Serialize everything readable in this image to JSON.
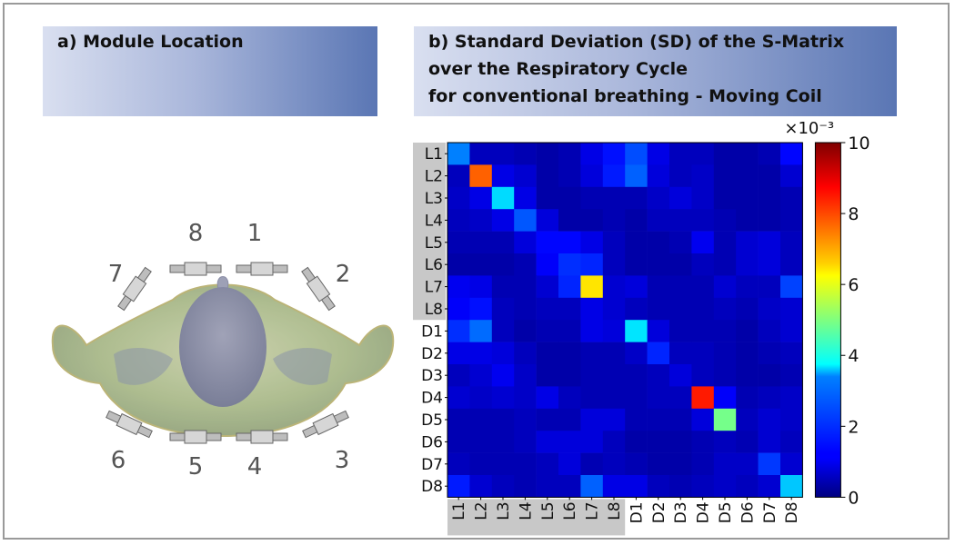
{
  "panel_a": {
    "title": "a) Module Location",
    "module_labels": [
      "1",
      "2",
      "3",
      "4",
      "5",
      "6",
      "7",
      "8"
    ]
  },
  "panel_b": {
    "title_lines": [
      "b) Standard Deviation (SD) of the S-Matrix",
      "over the Respiratory Cycle",
      "for conventional breathing - Moving Coil"
    ]
  },
  "colors": {
    "header_gradient": [
      "#d9dff0",
      "#5a76b4"
    ],
    "label_highlight": "#c8c8c8",
    "colormap": "jet"
  },
  "chart_data": {
    "type": "heatmap",
    "colormap": "jet",
    "rows": [
      "L1",
      "L2",
      "L3",
      "L4",
      "L5",
      "L6",
      "L7",
      "L8",
      "D1",
      "D2",
      "D3",
      "D4",
      "D5",
      "D6",
      "D7",
      "D8"
    ],
    "columns": [
      "L1",
      "L2",
      "L3",
      "L4",
      "L5",
      "L6",
      "L7",
      "L8",
      "D1",
      "D2",
      "D3",
      "D4",
      "D5",
      "D6",
      "D7",
      "D8"
    ],
    "highlighted_labels": [
      "L1",
      "L2",
      "L3",
      "L4",
      "L5",
      "L6",
      "L7",
      "L8"
    ],
    "scale_label": "×10⁻³",
    "colorbar": {
      "range": [
        0,
        10
      ],
      "ticks": [
        0,
        2,
        4,
        6,
        8,
        10
      ]
    },
    "values": [
      [
        2.5,
        0.6,
        0.6,
        0.5,
        0.4,
        0.5,
        1.0,
        1.4,
        2.0,
        1.0,
        0.6,
        0.6,
        0.4,
        0.4,
        0.5,
        1.3
      ],
      [
        0.6,
        7.8,
        1.0,
        0.8,
        0.4,
        0.5,
        0.9,
        1.5,
        2.2,
        0.9,
        0.6,
        0.7,
        0.4,
        0.4,
        0.4,
        0.8
      ],
      [
        0.7,
        1.0,
        3.4,
        1.0,
        0.4,
        0.4,
        0.5,
        0.5,
        0.5,
        0.7,
        0.9,
        0.7,
        0.4,
        0.4,
        0.4,
        0.5
      ],
      [
        0.6,
        0.7,
        1.0,
        2.1,
        0.9,
        0.4,
        0.4,
        0.5,
        0.4,
        0.6,
        0.6,
        0.6,
        0.5,
        0.4,
        0.4,
        0.5
      ],
      [
        0.5,
        0.5,
        0.5,
        0.9,
        1.3,
        1.3,
        1.0,
        0.6,
        0.4,
        0.4,
        0.5,
        1.1,
        0.5,
        0.8,
        0.9,
        0.6
      ],
      [
        0.4,
        0.4,
        0.4,
        0.5,
        1.2,
        1.7,
        1.6,
        0.6,
        0.4,
        0.4,
        0.4,
        0.6,
        0.5,
        0.8,
        0.9,
        0.6
      ],
      [
        1.1,
        1.0,
        0.5,
        0.5,
        0.8,
        1.6,
        6.5,
        0.8,
        0.9,
        0.5,
        0.5,
        0.5,
        0.8,
        0.6,
        0.6,
        1.9
      ],
      [
        1.2,
        1.4,
        0.6,
        0.5,
        0.6,
        0.6,
        1.0,
        0.8,
        0.6,
        0.5,
        0.5,
        0.5,
        0.6,
        0.5,
        0.7,
        0.8
      ],
      [
        1.7,
        2.3,
        0.6,
        0.4,
        0.5,
        0.5,
        1.0,
        0.9,
        3.5,
        0.9,
        0.5,
        0.5,
        0.5,
        0.4,
        0.6,
        0.8
      ],
      [
        1.0,
        1.0,
        0.9,
        0.6,
        0.4,
        0.4,
        0.5,
        0.5,
        0.7,
        1.6,
        0.6,
        0.6,
        0.5,
        0.4,
        0.5,
        0.6
      ],
      [
        0.6,
        0.8,
        1.1,
        0.7,
        0.4,
        0.4,
        0.5,
        0.5,
        0.5,
        0.6,
        0.9,
        0.6,
        0.5,
        0.4,
        0.4,
        0.5
      ],
      [
        0.8,
        0.7,
        0.8,
        0.7,
        1.0,
        0.6,
        0.5,
        0.5,
        0.5,
        0.6,
        0.6,
        8.5,
        1.2,
        0.5,
        0.6,
        0.7
      ],
      [
        0.5,
        0.5,
        0.5,
        0.6,
        0.5,
        0.5,
        0.9,
        0.9,
        0.5,
        0.5,
        0.5,
        0.9,
        4.9,
        0.6,
        0.8,
        0.7
      ],
      [
        0.5,
        0.5,
        0.5,
        0.6,
        0.9,
        0.9,
        0.9,
        0.6,
        0.4,
        0.4,
        0.4,
        0.5,
        0.6,
        0.5,
        0.8,
        0.6
      ],
      [
        0.6,
        0.5,
        0.5,
        0.5,
        0.6,
        0.9,
        0.5,
        0.6,
        0.5,
        0.4,
        0.4,
        0.5,
        0.7,
        0.7,
        1.8,
        0.8
      ],
      [
        1.5,
        0.8,
        0.6,
        0.5,
        0.6,
        0.6,
        2.2,
        1.0,
        1.0,
        0.6,
        0.5,
        0.6,
        0.7,
        0.6,
        0.8,
        3.2
      ]
    ]
  }
}
